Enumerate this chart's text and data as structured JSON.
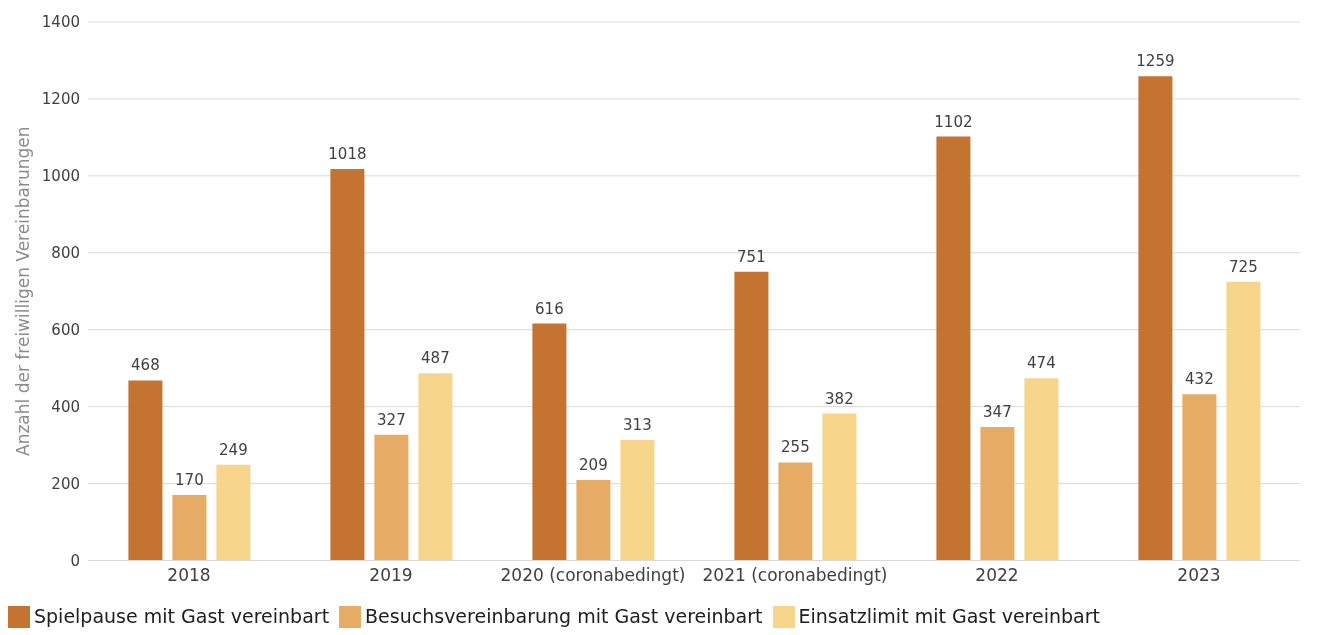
{
  "chart_data": {
    "type": "bar",
    "ylabel": "Anzahl der freiwilligen Vereinbarungen",
    "categories": [
      "2018",
      "2019",
      "2020 (coronabedingt)",
      "2021 (coronabedingt)",
      "2022",
      "2023"
    ],
    "series": [
      {
        "name": "Spielpause mit Gast vereinbart",
        "color": "#c47331",
        "values": [
          468,
          1018,
          616,
          751,
          1102,
          1259
        ]
      },
      {
        "name": "Besuchsvereinbarung mit Gast vereinbart",
        "color": "#e6ab64",
        "values": [
          170,
          327,
          209,
          255,
          347,
          432
        ]
      },
      {
        "name": "Einsatzlimit mit Gast vereinbart",
        "color": "#f7d68c",
        "values": [
          249,
          487,
          313,
          382,
          474,
          725
        ]
      }
    ],
    "ylim": [
      0,
      1400
    ],
    "yticks": [
      0,
      200,
      400,
      600,
      800,
      1000,
      1200,
      1400
    ],
    "grid": "y",
    "legend": "bottom",
    "data_labels": true
  }
}
